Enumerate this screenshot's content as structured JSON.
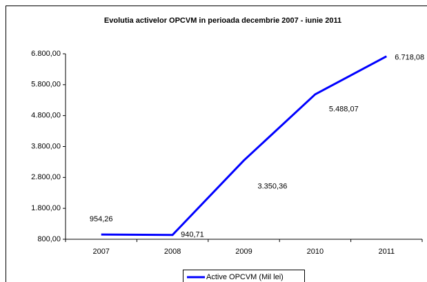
{
  "chart_data": {
    "type": "line",
    "title": "Evolutia activelor OPCVM in perioada decembrie 2007 - iunie 2011",
    "categories": [
      "2007",
      "2008",
      "2009",
      "2010",
      "2011"
    ],
    "series": [
      {
        "name": "Active OPCVM (Mil lei)",
        "color": "#0000ff",
        "values": [
          954.26,
          940.71,
          3350.36,
          5488.07,
          6718.08
        ],
        "value_labels": [
          "954,26",
          "940,71",
          "3.350,36",
          "5.488,07",
          "6.718,08"
        ]
      }
    ],
    "ylim": [
      800,
      6800
    ],
    "yticks": [
      {
        "value": 800,
        "label": "800,00"
      },
      {
        "value": 1800,
        "label": "1.800,00"
      },
      {
        "value": 2800,
        "label": "2.800,00"
      },
      {
        "value": 3800,
        "label": "3.800,00"
      },
      {
        "value": 4800,
        "label": "4.800,00"
      },
      {
        "value": 5800,
        "label": "5.800,00"
      },
      {
        "value": 6800,
        "label": "6.800,00"
      }
    ],
    "grid": false,
    "legend": "bottom"
  }
}
